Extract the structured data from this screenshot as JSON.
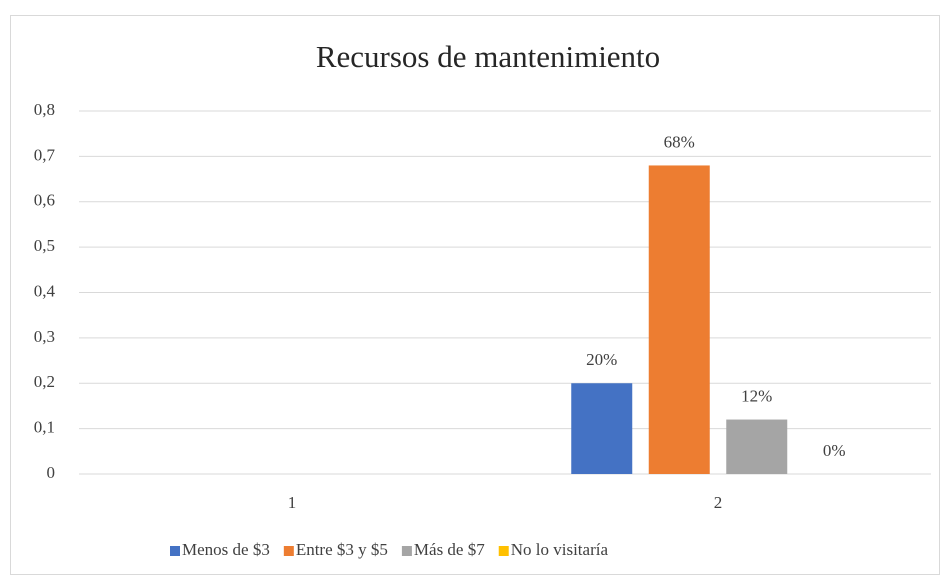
{
  "chart_data": {
    "type": "bar",
    "title": "Recursos de mantenimiento",
    "categories": [
      "1",
      "2"
    ],
    "series": [
      {
        "name": "Menos de $3",
        "color": "#4472c4",
        "values": [
          null,
          0.2
        ],
        "value_labels": [
          null,
          "20%"
        ]
      },
      {
        "name": "Entre $3 y $5",
        "color": "#ed7d31",
        "values": [
          null,
          0.68
        ],
        "value_labels": [
          null,
          "68%"
        ]
      },
      {
        "name": "Más de $7",
        "color": "#a5a5a5",
        "values": [
          null,
          0.12
        ],
        "value_labels": [
          null,
          "12%"
        ]
      },
      {
        "name": "No lo visitaría",
        "color": "#ffc000",
        "values": [
          null,
          0
        ],
        "value_labels": [
          null,
          "0%"
        ]
      }
    ],
    "ylim": [
      0,
      0.8
    ],
    "yticks": [
      0,
      {
        "value": 0.1,
        "label": "0,1"
      },
      {
        "value": 0.2,
        "label": "0,2"
      },
      {
        "value": 0.3,
        "label": "0,3"
      },
      {
        "value": 0.4,
        "label": "0,4"
      },
      {
        "value": 0.5,
        "label": "0,5"
      },
      {
        "value": 0.6,
        "label": "0,6"
      },
      {
        "value": 0.7,
        "label": "0,7"
      },
      {
        "value": 0.8,
        "label": "0,8"
      }
    ],
    "grid": true,
    "legend": "bottom"
  }
}
